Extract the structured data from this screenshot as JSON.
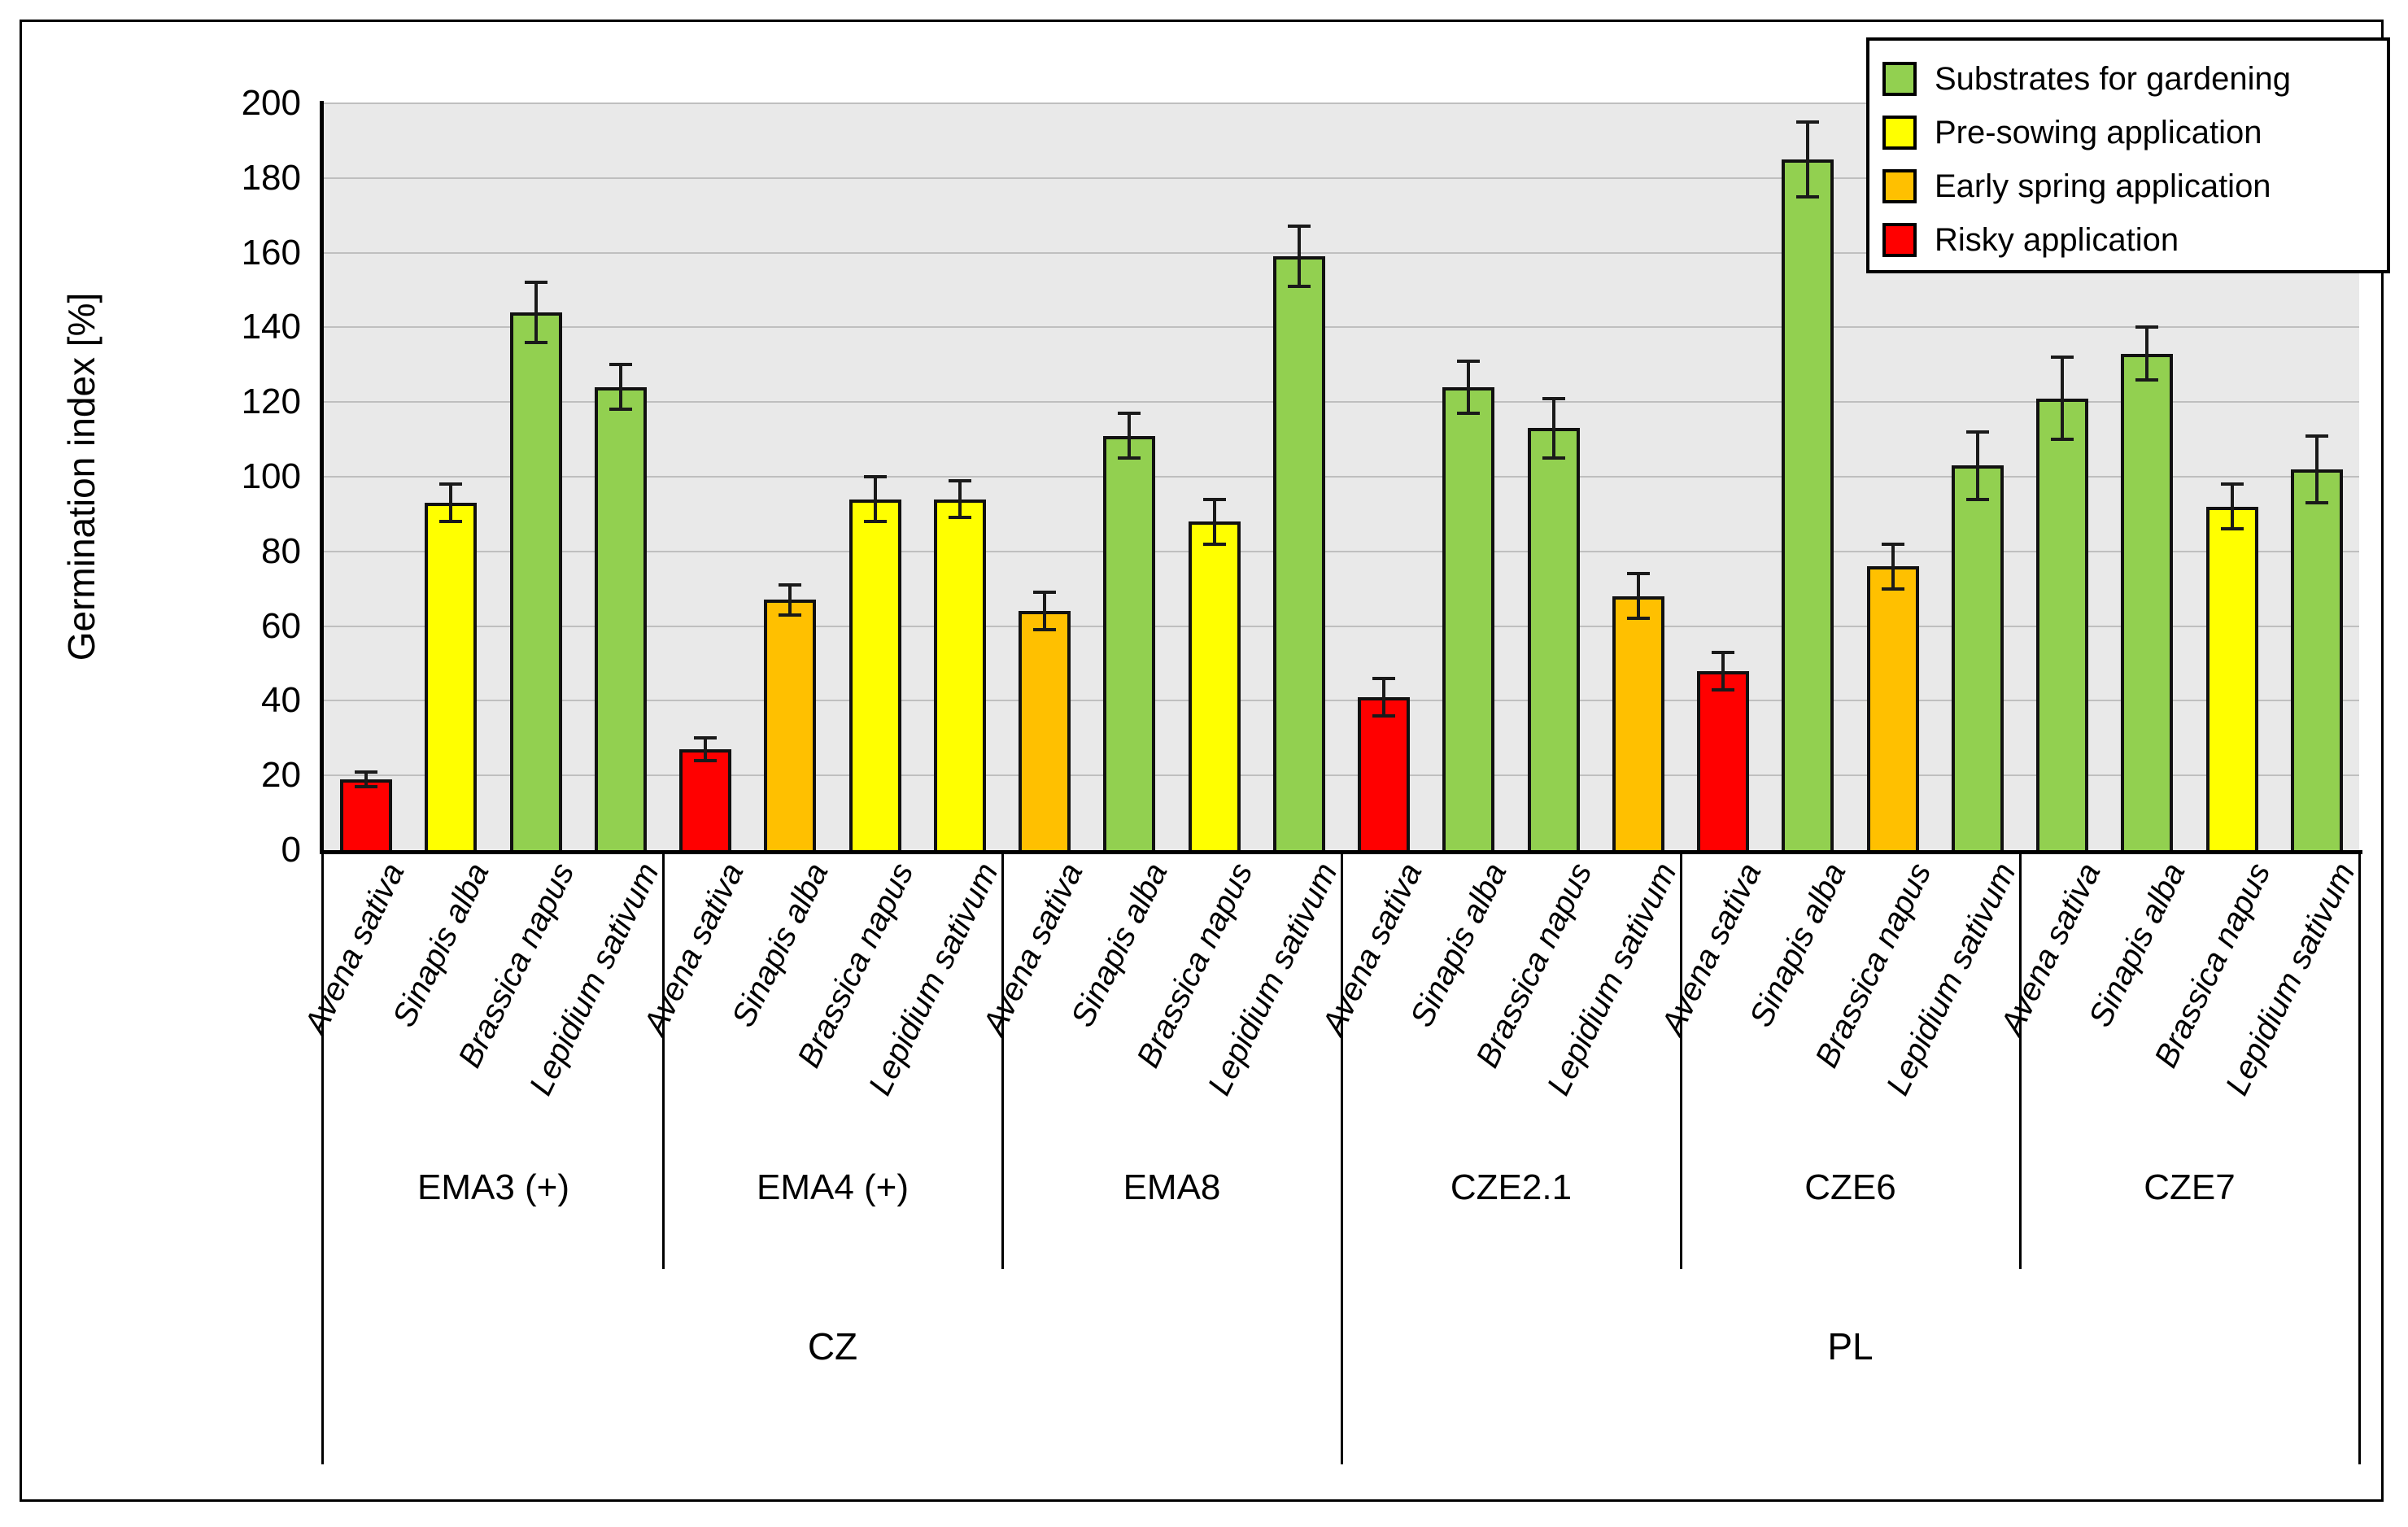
{
  "chart_data": {
    "type": "bar",
    "title": "",
    "ylabel": "Germination index [%]",
    "xlabel": "",
    "ylim": [
      0,
      200
    ],
    "ytick_step": 20,
    "yticks": [
      0,
      20,
      40,
      60,
      80,
      100,
      120,
      140,
      160,
      180,
      200
    ],
    "grid": true,
    "plot_background": "#e9e9e9",
    "gridline_color": "#bfbfbf",
    "legend_position": "top-right",
    "legend": [
      {
        "label": "Substrates for gardening",
        "category": "gardening",
        "color": "#92D050"
      },
      {
        "label": "Pre-sowing application",
        "category": "pre-sowing",
        "color": "#FFFF00"
      },
      {
        "label": "Early spring application",
        "category": "early-spring",
        "color": "#FFC000"
      },
      {
        "label": "Risky application",
        "category": "risky",
        "color": "#FF0000"
      }
    ],
    "countries": [
      {
        "label": "CZ",
        "group_indices": [
          0,
          1,
          2
        ]
      },
      {
        "label": "PL",
        "group_indices": [
          3,
          4,
          5
        ]
      }
    ],
    "groups": [
      {
        "label": "EMA3 (+)",
        "country": "CZ",
        "bars": [
          {
            "species": "Avena sativa",
            "value": 19,
            "error": 2,
            "category": "risky"
          },
          {
            "species": "Sinapis alba",
            "value": 93,
            "error": 5,
            "category": "pre-sowing"
          },
          {
            "species": "Brassica napus",
            "value": 144,
            "error": 8,
            "category": "gardening"
          },
          {
            "species": "Lepidium sativum",
            "value": 124,
            "error": 6,
            "category": "gardening"
          }
        ]
      },
      {
        "label": "EMA4 (+)",
        "country": "CZ",
        "bars": [
          {
            "species": "Avena sativa",
            "value": 27,
            "error": 3,
            "category": "risky"
          },
          {
            "species": "Sinapis alba",
            "value": 67,
            "error": 4,
            "category": "early-spring"
          },
          {
            "species": "Brassica napus",
            "value": 94,
            "error": 6,
            "category": "pre-sowing"
          },
          {
            "species": "Lepidium sativum",
            "value": 94,
            "error": 5,
            "category": "pre-sowing"
          }
        ]
      },
      {
        "label": "EMA8",
        "country": "CZ",
        "bars": [
          {
            "species": "Avena sativa",
            "value": 64,
            "error": 5,
            "category": "early-spring"
          },
          {
            "species": "Sinapis alba",
            "value": 111,
            "error": 6,
            "category": "gardening"
          },
          {
            "species": "Brassica napus",
            "value": 88,
            "error": 6,
            "category": "pre-sowing"
          },
          {
            "species": "Lepidium sativum",
            "value": 159,
            "error": 8,
            "category": "gardening"
          }
        ]
      },
      {
        "label": "CZE2.1",
        "country": "PL",
        "bars": [
          {
            "species": "Avena sativa",
            "value": 41,
            "error": 5,
            "category": "risky"
          },
          {
            "species": "Sinapis alba",
            "value": 124,
            "error": 7,
            "category": "gardening"
          },
          {
            "species": "Brassica napus",
            "value": 113,
            "error": 8,
            "category": "gardening"
          },
          {
            "species": "Lepidium sativum",
            "value": 68,
            "error": 6,
            "category": "early-spring"
          }
        ]
      },
      {
        "label": "CZE6",
        "country": "PL",
        "bars": [
          {
            "species": "Avena sativa",
            "value": 48,
            "error": 5,
            "category": "risky"
          },
          {
            "species": "Sinapis alba",
            "value": 185,
            "error": 10,
            "category": "gardening"
          },
          {
            "species": "Brassica napus",
            "value": 76,
            "error": 6,
            "category": "early-spring"
          },
          {
            "species": "Lepidium sativum",
            "value": 103,
            "error": 9,
            "category": "gardening"
          }
        ]
      },
      {
        "label": "CZE7",
        "country": "PL",
        "bars": [
          {
            "species": "Avena sativa",
            "value": 121,
            "error": 11,
            "category": "gardening"
          },
          {
            "species": "Sinapis alba",
            "value": 133,
            "error": 7,
            "category": "gardening"
          },
          {
            "species": "Brassica napus",
            "value": 92,
            "error": 6,
            "category": "pre-sowing"
          },
          {
            "species": "Lepidium sativum",
            "value": 102,
            "error": 9,
            "category": "gardening"
          }
        ]
      }
    ]
  }
}
